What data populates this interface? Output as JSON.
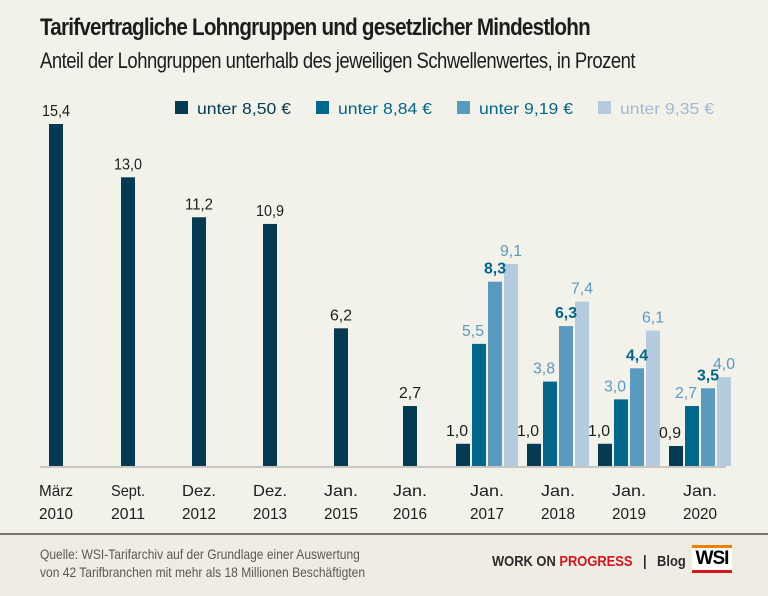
{
  "header": {
    "title": "Tarifvertragliche Lohngruppen und gesetzlicher Mindestlohn",
    "subtitle": "Anteil der Lohngruppen unterhalb des jeweiligen Schwellenwertes, in Prozent"
  },
  "footer": {
    "source_line1": "Quelle: WSI-Tarifarchiv auf der Grundlage einer Auswertung",
    "source_line2": "von 42 Tarifbranchen mit mehr als 18 Millionen Beschäftigten",
    "brand_part1": "WORK ON",
    "brand_part2": "PROGRESS",
    "brand_sep": "|",
    "brand_part3": "Blog",
    "logo": "WSI"
  },
  "colors": {
    "series": [
      "#043a52",
      "#00668a",
      "#5b9abf",
      "#b5cbe0"
    ],
    "label_colors": [
      "#1d1d1b",
      "#5b9abf",
      "#00668a",
      "#5b9abf"
    ],
    "axis": "#c9c7bf"
  },
  "chart_data": {
    "type": "bar",
    "title": "Tarifvertragliche Lohngruppen und gesetzlicher Mindestlohn",
    "subtitle": "Anteil der Lohngruppen unterhalb des jeweiligen Schwellenwertes, in Prozent",
    "xlabel": "",
    "ylabel": "Prozent",
    "ylim": [
      0,
      15.4
    ],
    "grid": false,
    "legend_position": "top",
    "categories": [
      [
        "März",
        "2010"
      ],
      [
        "Sept.",
        "2011"
      ],
      [
        "Dez.",
        "2012"
      ],
      [
        "Dez.",
        "2013"
      ],
      [
        "Jan.",
        "2015"
      ],
      [
        "Jan.",
        "2016"
      ],
      [
        "Jan.",
        "2017"
      ],
      [
        "Jan.",
        "2018"
      ],
      [
        "Jan.",
        "2019"
      ],
      [
        "Jan.",
        "2020"
      ]
    ],
    "series": [
      {
        "name": "unter 8,50 €",
        "values": [
          15.4,
          13.0,
          11.2,
          10.9,
          6.2,
          2.7,
          1.0,
          1.0,
          1.0,
          0.9
        ],
        "labels": [
          "15,4",
          "13,0",
          "11,2",
          "10,9",
          "6,2",
          "2,7",
          "1,0",
          "1,0",
          "1,0",
          "0,9"
        ]
      },
      {
        "name": "unter 8,84 €",
        "values": [
          null,
          null,
          null,
          null,
          null,
          null,
          5.5,
          3.8,
          3.0,
          2.7
        ],
        "labels": [
          null,
          null,
          null,
          null,
          null,
          null,
          "5,5",
          "3,8",
          "3,0",
          "2,7"
        ]
      },
      {
        "name": "unter 9,19 €",
        "values": [
          null,
          null,
          null,
          null,
          null,
          null,
          8.3,
          6.3,
          4.4,
          3.5
        ],
        "labels": [
          null,
          null,
          null,
          null,
          null,
          null,
          "8,3",
          "6,3",
          "4,4",
          "3,5"
        ]
      },
      {
        "name": "unter 9,35 €",
        "values": [
          null,
          null,
          null,
          null,
          null,
          null,
          9.1,
          7.4,
          6.1,
          4.0
        ],
        "labels": [
          null,
          null,
          null,
          null,
          null,
          null,
          "9,1",
          "7,4",
          "6,1",
          "4,0"
        ]
      }
    ]
  }
}
